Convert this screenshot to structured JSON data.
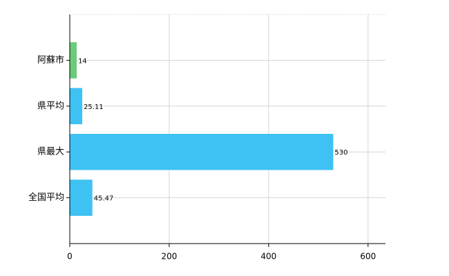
{
  "chart_data": {
    "type": "bar",
    "orientation": "horizontal",
    "categories": [
      "阿蘇市",
      "県平均",
      "県最大",
      "全国平均"
    ],
    "values": [
      14,
      25.11,
      530,
      45.47
    ],
    "colors": [
      "#6acb7a",
      "#3ec1f3",
      "#3ec1f3",
      "#3ec1f3"
    ],
    "xlim": [
      0,
      635
    ],
    "xticks": [
      0,
      200,
      400,
      600
    ],
    "grid": true
  }
}
